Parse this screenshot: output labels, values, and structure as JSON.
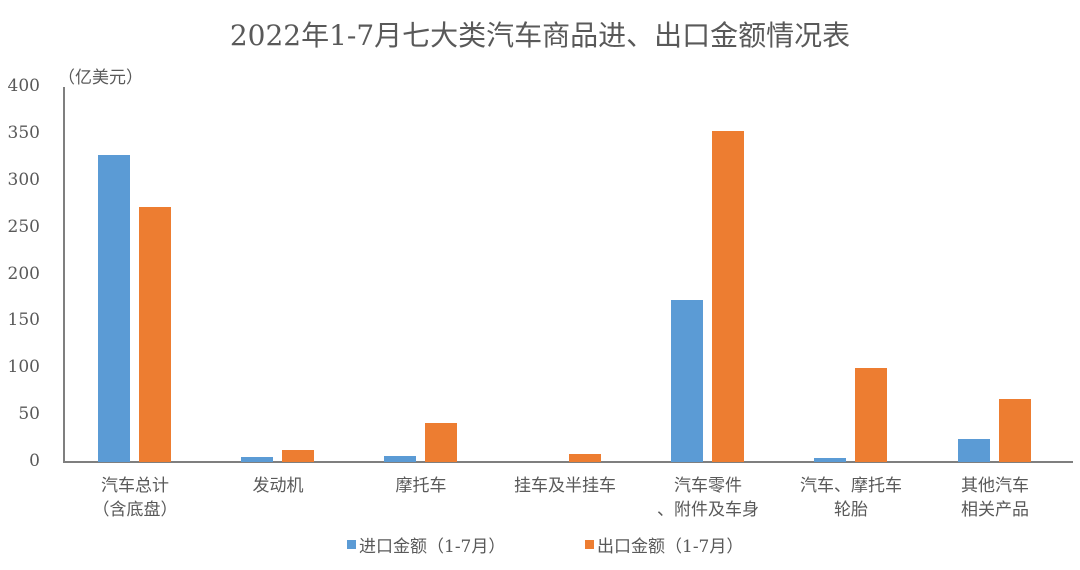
{
  "chart_data": {
    "type": "bar",
    "title": "2022年1-7月七大类汽车商品进、出口金额情况表",
    "unit_label": "（亿美元）",
    "xlabel": "",
    "ylabel": "亿美元",
    "ylim": [
      0,
      400
    ],
    "yticks": [
      "400",
      "350",
      "300",
      "250",
      "200",
      "150",
      "100",
      "50",
      "0"
    ],
    "grid": false,
    "legend_position": "bottom",
    "categories": [
      "汽车总计\n（含底盘）",
      "发动机",
      "摩托车",
      "挂车及半挂车",
      "汽车零件\n、附件及车身",
      "汽车、摩托车\n轮胎",
      "其他汽车\n相关产品"
    ],
    "series": [
      {
        "name": "进口金额（1-7月）",
        "color": "#5b9bd5",
        "values": [
          327,
          5,
          6,
          0,
          173,
          4,
          25
        ]
      },
      {
        "name": "出口金额（1-7月）",
        "color": "#ed7d31",
        "values": [
          272,
          13,
          42,
          9,
          353,
          100,
          67
        ]
      }
    ]
  }
}
